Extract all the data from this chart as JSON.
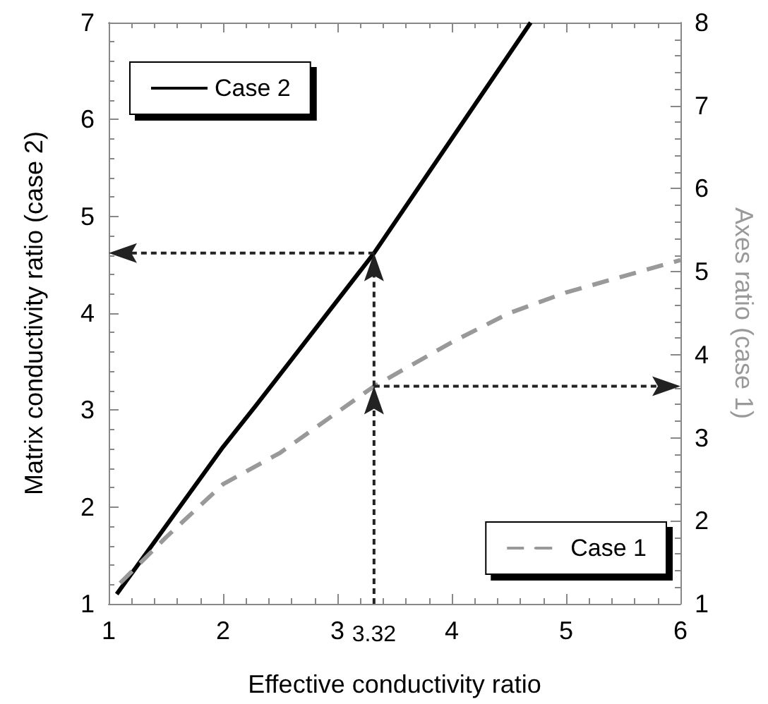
{
  "chart_data": {
    "type": "line",
    "xlabel": "Effective conductivity ratio",
    "ylabel": "Matrix conductivity ratio (case 2)",
    "y2label": "Axes ratio (case 1)",
    "xlim": [
      1,
      6
    ],
    "xticks": [
      1,
      2,
      3,
      4,
      5,
      6
    ],
    "ylim": [
      1,
      7
    ],
    "yticks": [
      1,
      2,
      3,
      4,
      5,
      6,
      7
    ],
    "y2lim": [
      1,
      8
    ],
    "y2ticks": [
      1,
      2,
      3,
      4,
      5,
      6,
      7,
      8
    ],
    "grid": false,
    "legend": "bottom right",
    "marker": "none",
    "ref_lines": [
      {
        "axis": "x",
        "value": 3.32,
        "label": "3.32",
        "color": "#222222",
        "line_style": "dotted"
      },
      {
        "axis": "y",
        "value": 4.62,
        "label": null,
        "color": "#222222",
        "line_style": "dotted"
      },
      {
        "axis": "y2",
        "value": 3.62,
        "label": null,
        "color": "#222222",
        "line_style": "dotted"
      }
    ],
    "series": [
      {
        "name": "Case 2",
        "color": "#000000",
        "line_style": "solid",
        "x": [
          1.07,
          2,
          2.29,
          3.32,
          4.69
        ],
        "values": [
          1.1,
          2.62,
          3.05,
          4.62,
          7
        ]
      },
      {
        "name": "Case 1",
        "color": "#999999",
        "line_style": "dashed",
        "axis": "y2",
        "x": [
          1.1,
          1.5,
          2,
          2.5,
          3.32,
          4,
          4.5,
          5,
          6
        ],
        "values": [
          1.25,
          1.8,
          2.44,
          2.82,
          3.62,
          4.15,
          4.5,
          4.75,
          5.14
        ]
      }
    ]
  }
}
